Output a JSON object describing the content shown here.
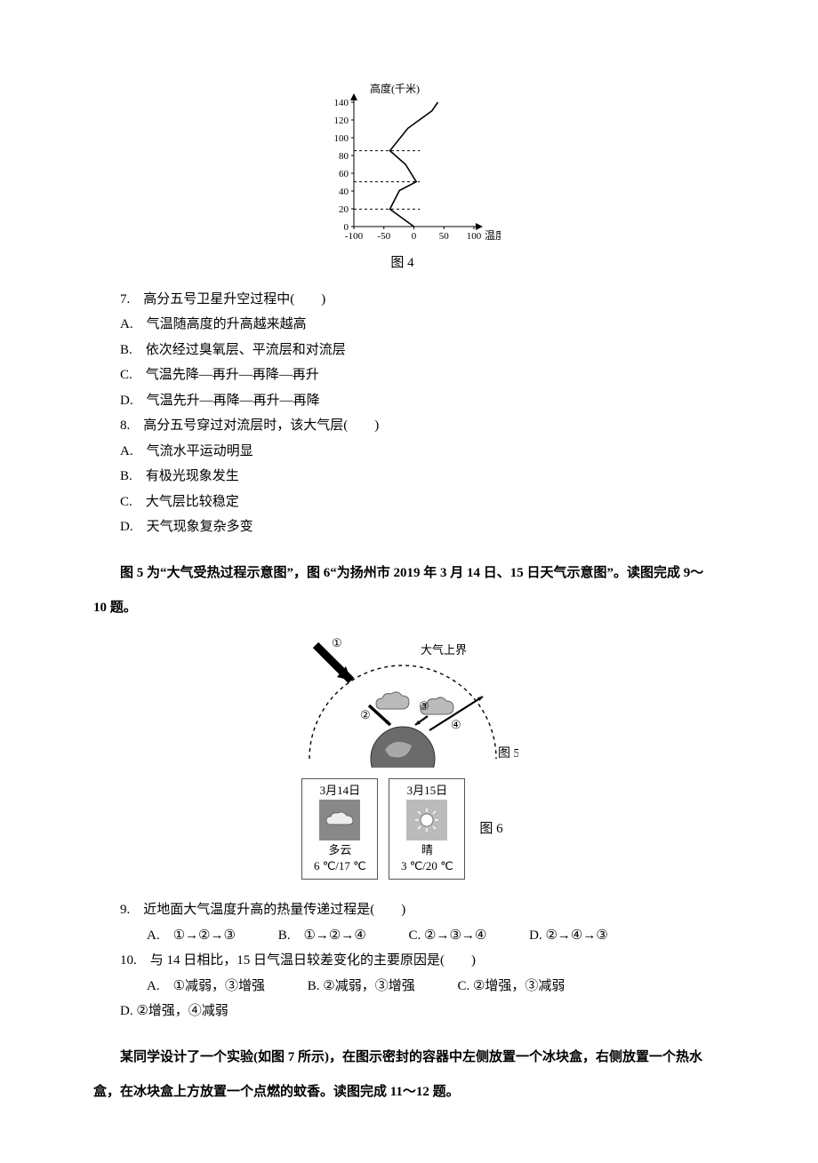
{
  "fig4": {
    "axis_y_label": "高度(千米)",
    "axis_x_label": "温度(℃)",
    "caption": "图 4",
    "y_ticks": [
      0,
      20,
      40,
      60,
      80,
      100,
      120,
      140
    ],
    "x_ticks": [
      "-100",
      "-50",
      "0",
      "50",
      "100"
    ],
    "curve_points": [
      [
        0.5,
        0.0
      ],
      [
        0.3,
        0.14
      ],
      [
        0.38,
        0.29
      ],
      [
        0.52,
        0.36
      ],
      [
        0.43,
        0.5
      ],
      [
        0.3,
        0.61
      ],
      [
        0.45,
        0.79
      ],
      [
        0.65,
        0.93
      ],
      [
        0.7,
        1.0
      ]
    ],
    "dash_levels": [
      0.14,
      0.36,
      0.61
    ],
    "axis_color": "#000",
    "curve_color": "#000",
    "curve_width": 1.6,
    "grid_color": "#000"
  },
  "q7": {
    "stem": "7. 高分五号卫星升空过程中(　　)",
    "opts": {
      "A": "A. 气温随高度的升高越来越高",
      "B": "B. 依次经过臭氧层、平流层和对流层",
      "C": "C. 气温先降—再升—再降—再升",
      "D": "D. 气温先升—再降—再升—再降"
    }
  },
  "q8": {
    "stem": "8. 高分五号穿过对流层时，该大气层(　　)",
    "opts": {
      "A": "A. 气流水平运动明显",
      "B": "B. 有极光现象发生",
      "C": "C. 大气层比较稳定",
      "D": "D. 天气现象复杂多变"
    }
  },
  "intro56": "图 5 为“大气受热过程示意图”，图 6“为扬州市 2019 年 3 月 14 日、15 日天气示意图”。读图完成 9～10 题。",
  "fig5": {
    "boundary_label": "大气上界",
    "arrows": {
      "a1": "①",
      "a2": "②",
      "a3": "③",
      "a4": "④"
    },
    "caption": "图 5",
    "bg": "#ffffff",
    "line": "#000",
    "earth_fill": "#6b6b6b"
  },
  "fig6": {
    "cards": [
      {
        "date": "3月14日",
        "desc": "多云",
        "range": "6 ℃/17 ℃",
        "icon": "cloud"
      },
      {
        "date": "3月15日",
        "desc": "晴",
        "range": "3 ℃/20 ℃",
        "icon": "sun"
      }
    ],
    "caption": "图 6"
  },
  "q9": {
    "stem": "9. 近地面大气温度升高的热量传递过程是(　　)",
    "opts": {
      "A": "A. ①→②→③",
      "B": "B. ①→②→④",
      "C": "C. ②→③→④",
      "D": "D. ②→④→③"
    }
  },
  "q10": {
    "stem": "10. 与 14 日相比，15 日气温日较差变化的主要原因是(　　)",
    "opts": {
      "A": "A. ①减弱，③增强",
      "B": "B. ②减弱，③增强",
      "C": "C. ②增强，③减弱",
      "D": "D. ②增强，④减弱"
    }
  },
  "intro7": "某同学设计了一个实验(如图 7 所示)，在图示密封的容器中左侧放置一个冰块盒，右侧放置一个热水盒，在冰块盒上方放置一个点燃的蚊香。读图完成 11～12 题。"
}
